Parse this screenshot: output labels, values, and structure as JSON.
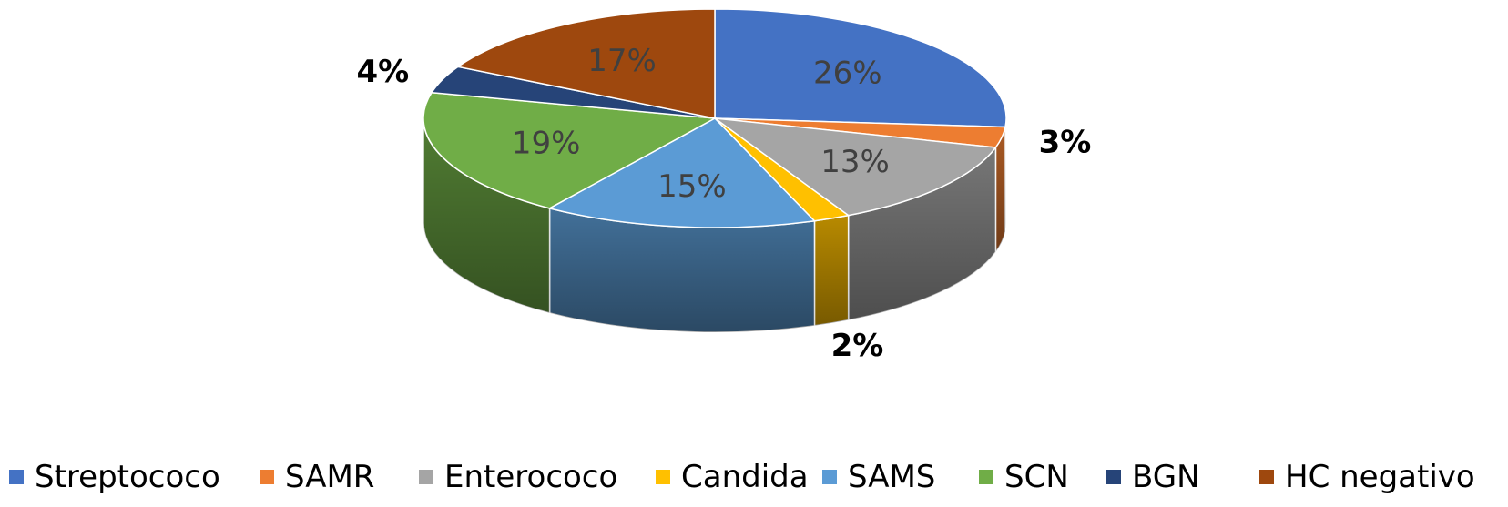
{
  "chart_data": {
    "type": "pie",
    "style": "3d",
    "title": "",
    "slices": [
      {
        "name": "Streptococo",
        "value": 26,
        "label": "26%",
        "color": "#4472c4",
        "label_inside": true
      },
      {
        "name": "SAMR",
        "value": 3,
        "label": "3%",
        "color": "#ed7d31",
        "label_inside": false
      },
      {
        "name": "Enterococo",
        "value": 13,
        "label": "13%",
        "color": "#a5a5a5",
        "label_inside": true
      },
      {
        "name": "Candida",
        "value": 2,
        "label": "2%",
        "color": "#ffc000",
        "label_inside": false
      },
      {
        "name": "SAMS",
        "value": 15,
        "label": "15%",
        "color": "#5b9bd5",
        "label_inside": true
      },
      {
        "name": "SCN",
        "value": 19,
        "label": "19%",
        "color": "#70ad47",
        "label_inside": true
      },
      {
        "name": "BGN",
        "value": 4,
        "label": "4%",
        "color": "#264478",
        "label_inside": false
      },
      {
        "name": "HC negativo",
        "value": 17,
        "label": "17%",
        "color": "#9e480e",
        "label_inside": true
      }
    ],
    "legend_position": "bottom"
  }
}
